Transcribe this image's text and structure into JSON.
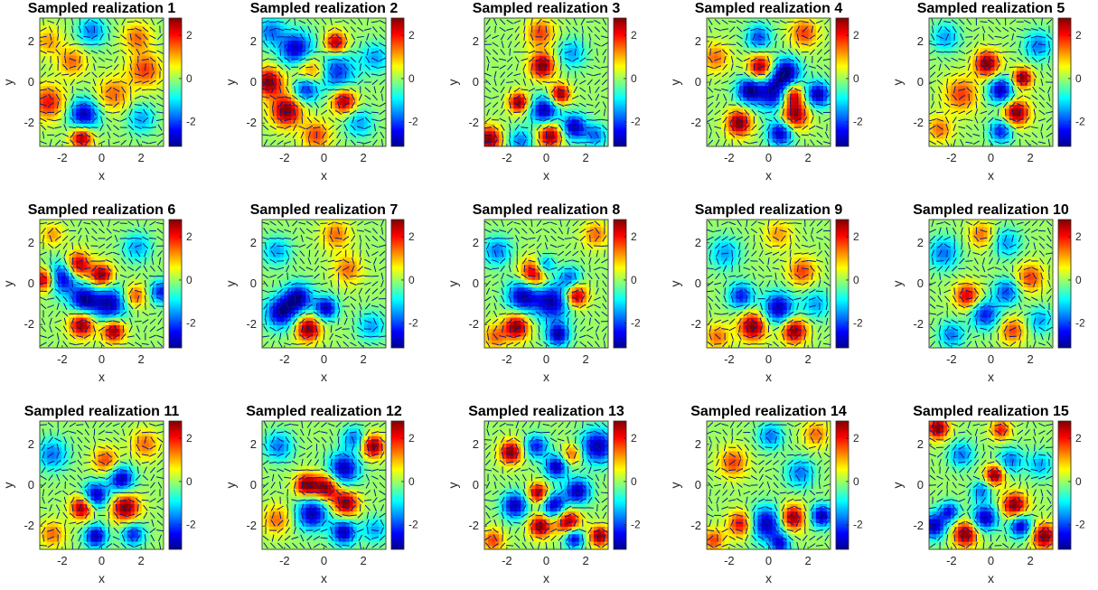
{
  "chart_data": {
    "type": "heatmap",
    "colormap": "jet",
    "overlay": "quiver",
    "grid": false,
    "xlabel": "x",
    "ylabel": "y",
    "xlim": [
      -3.14,
      3.14
    ],
    "ylim": [
      -3.14,
      3.14
    ],
    "xticks": [
      -2,
      0,
      2
    ],
    "yticks": [
      -2,
      0,
      2
    ],
    "colorbar": {
      "clim": [
        -3.14,
        2.8
      ],
      "ticks": [
        2,
        0,
        -2
      ]
    },
    "panels": [
      {
        "title": "Sampled realization 1",
        "blobs": [
          [
            -0.9,
            -1.6,
            -1,
            0.55
          ],
          [
            -1.0,
            -2.7,
            1,
            0.4
          ],
          [
            2.2,
            0.6,
            0.6,
            0.6
          ],
          [
            -2.7,
            -1.0,
            0.7,
            0.6
          ],
          [
            -0.5,
            2.5,
            -0.6,
            0.5
          ],
          [
            2.0,
            -1.8,
            -0.5,
            0.5
          ],
          [
            1.8,
            2.2,
            0.5,
            0.5
          ],
          [
            -1.5,
            1.0,
            0.5,
            0.5
          ],
          [
            0.6,
            -0.6,
            0.5,
            0.6
          ],
          [
            -2.7,
            2.0,
            0.4,
            0.5
          ]
        ]
      },
      {
        "title": "Sampled realization 2",
        "blobs": [
          [
            -1.4,
            1.6,
            -1,
            0.6
          ],
          [
            -0.5,
            0.5,
            1,
            0.65
          ],
          [
            0.4,
            0.5,
            -1,
            0.75
          ],
          [
            -0.9,
            -0.3,
            -1,
            0.45
          ],
          [
            -1.9,
            -1.4,
            1,
            0.55
          ],
          [
            -2.8,
            0.0,
            1,
            0.5
          ],
          [
            1.0,
            -0.9,
            1,
            0.45
          ],
          [
            0.6,
            1.9,
            1,
            0.4
          ],
          [
            -0.4,
            -2.6,
            0.6,
            0.5
          ],
          [
            2.6,
            1.2,
            -0.5,
            0.5
          ],
          [
            -2.7,
            2.5,
            -0.6,
            0.5
          ],
          [
            1.8,
            -2.0,
            -0.5,
            0.5
          ]
        ]
      },
      {
        "title": "Sampled realization 3",
        "blobs": [
          [
            -0.1,
            -1.4,
            -1,
            0.5
          ],
          [
            1.4,
            -2.2,
            -1,
            0.45
          ],
          [
            0.2,
            -2.6,
            1,
            0.45
          ],
          [
            -0.2,
            0.8,
            1,
            0.45
          ],
          [
            -1.4,
            -1.0,
            1,
            0.35
          ],
          [
            0.7,
            -0.6,
            1,
            0.35
          ],
          [
            -2.9,
            -2.8,
            1,
            0.45
          ],
          [
            -1.3,
            -2.9,
            -0.6,
            0.45
          ],
          [
            2.5,
            -2.6,
            -0.6,
            0.4
          ],
          [
            -0.3,
            2.4,
            0.6,
            0.5
          ],
          [
            1.3,
            1.4,
            -0.5,
            0.5
          ]
        ]
      },
      {
        "title": "Sampled realization 4",
        "blobs": [
          [
            0.3,
            -0.5,
            -1,
            0.65
          ],
          [
            1.3,
            -1.6,
            1,
            0.5
          ],
          [
            -0.4,
            0.7,
            1,
            0.45
          ],
          [
            0.9,
            0.5,
            -1,
            0.5
          ],
          [
            -1.0,
            -0.4,
            -1,
            0.45
          ],
          [
            1.2,
            -0.6,
            1,
            0.4
          ],
          [
            0.6,
            -2.5,
            -1,
            0.45
          ],
          [
            2.5,
            -0.6,
            -1,
            0.45
          ],
          [
            -1.5,
            -2.0,
            1,
            0.45
          ],
          [
            -0.5,
            2.2,
            -0.7,
            0.45
          ],
          [
            1.8,
            2.4,
            0.6,
            0.5
          ],
          [
            -2.7,
            1.2,
            0.5,
            0.5
          ]
        ]
      },
      {
        "title": "Sampled realization 5",
        "blobs": [
          [
            0.5,
            -0.4,
            -1,
            0.45
          ],
          [
            1.3,
            -1.5,
            1,
            0.45
          ],
          [
            -0.2,
            0.9,
            1,
            0.45
          ],
          [
            1.6,
            0.2,
            1,
            0.35
          ],
          [
            0.5,
            -2.4,
            -0.8,
            0.4
          ],
          [
            -1.5,
            -0.6,
            0.6,
            0.6
          ],
          [
            2.4,
            1.8,
            -0.6,
            0.5
          ],
          [
            -2.3,
            2.2,
            -0.5,
            0.5
          ],
          [
            -2.6,
            -2.3,
            0.5,
            0.45
          ]
        ]
      },
      {
        "title": "Sampled realization 6",
        "blobs": [
          [
            -2.0,
            0.3,
            -1,
            0.55
          ],
          [
            -0.9,
            -0.8,
            -1,
            0.5
          ],
          [
            0.4,
            -1.0,
            -1,
            0.6
          ],
          [
            -1.2,
            0.9,
            1,
            0.45
          ],
          [
            0.0,
            0.4,
            1,
            0.4
          ],
          [
            -1.0,
            -2.0,
            1,
            0.45
          ],
          [
            0.6,
            -2.3,
            1,
            0.4
          ],
          [
            -2.9,
            0.2,
            1,
            0.4
          ],
          [
            3.0,
            -0.4,
            -0.8,
            0.4
          ],
          [
            1.7,
            -0.6,
            0.6,
            0.4
          ],
          [
            1.8,
            1.8,
            -0.5,
            0.5
          ],
          [
            -2.5,
            2.4,
            0.4,
            0.4
          ]
        ]
      },
      {
        "title": "Sampled realization 7",
        "blobs": [
          [
            -2.2,
            -1.4,
            -1,
            0.55
          ],
          [
            -1.3,
            -0.7,
            -1,
            0.5
          ],
          [
            0.1,
            -1.2,
            -1,
            0.4
          ],
          [
            -0.8,
            -2.2,
            1,
            0.45
          ],
          [
            1.2,
            0.7,
            0.5,
            0.5
          ],
          [
            -2.4,
            1.6,
            -0.5,
            0.5
          ],
          [
            2.4,
            -2.1,
            -0.5,
            0.5
          ],
          [
            0.6,
            2.4,
            0.5,
            0.5
          ]
        ]
      },
      {
        "title": "Sampled realization 8",
        "blobs": [
          [
            -1.2,
            -0.6,
            -1,
            0.55
          ],
          [
            0.3,
            -0.9,
            -1,
            0.65
          ],
          [
            -0.6,
            0.5,
            1,
            0.5
          ],
          [
            -1.5,
            -2.1,
            1,
            0.45
          ],
          [
            1.5,
            -0.6,
            1,
            0.4
          ],
          [
            0.6,
            -2.5,
            -1,
            0.4
          ],
          [
            -0.1,
            0.9,
            -0.8,
            0.35
          ],
          [
            1.2,
            0.3,
            -0.6,
            0.4
          ],
          [
            -2.5,
            1.6,
            -0.6,
            0.5
          ],
          [
            2.5,
            2.4,
            0.5,
            0.45
          ],
          [
            -2.6,
            -2.6,
            0.5,
            0.45
          ]
        ]
      },
      {
        "title": "Sampled realization 9",
        "blobs": [
          [
            0.5,
            -1.2,
            -1,
            0.55
          ],
          [
            -0.8,
            -2.1,
            1,
            0.5
          ],
          [
            1.3,
            -2.3,
            1,
            0.45
          ],
          [
            -1.4,
            -0.6,
            -0.8,
            0.45
          ],
          [
            1.7,
            0.6,
            0.6,
            0.5
          ],
          [
            -2.2,
            1.5,
            -0.5,
            0.55
          ],
          [
            2.4,
            -1.0,
            -0.5,
            0.5
          ],
          [
            0.5,
            2.4,
            0.4,
            0.5
          ],
          [
            -2.6,
            -2.6,
            0.5,
            0.45
          ]
        ]
      },
      {
        "title": "Sampled realization 10",
        "blobs": [
          [
            -0.3,
            -1.5,
            -0.8,
            0.5
          ],
          [
            0.8,
            -0.4,
            -0.7,
            0.45
          ],
          [
            -1.2,
            -0.6,
            0.8,
            0.45
          ],
          [
            2.0,
            0.3,
            0.6,
            0.5
          ],
          [
            -2.4,
            1.5,
            -0.6,
            0.55
          ],
          [
            1.1,
            -2.3,
            0.6,
            0.45
          ],
          [
            -2.0,
            -2.5,
            -0.6,
            0.45
          ],
          [
            0.8,
            2.0,
            -0.5,
            0.5
          ],
          [
            -0.5,
            2.4,
            0.5,
            0.45
          ],
          [
            2.5,
            -1.8,
            -0.5,
            0.45
          ]
        ]
      },
      {
        "title": "Sampled realization 11",
        "blobs": [
          [
            -0.3,
            -0.5,
            -1,
            0.45
          ],
          [
            1.2,
            -1.1,
            1,
            0.5
          ],
          [
            -1.0,
            -1.1,
            1,
            0.4
          ],
          [
            1.0,
            0.3,
            -1,
            0.45
          ],
          [
            -0.3,
            -2.5,
            -1,
            0.4
          ],
          [
            1.6,
            -2.4,
            -0.8,
            0.4
          ],
          [
            0.2,
            1.2,
            0.6,
            0.45
          ],
          [
            -2.5,
            1.5,
            -0.6,
            0.55
          ],
          [
            2.2,
            2.0,
            0.5,
            0.5
          ],
          [
            -2.5,
            -2.4,
            0.5,
            0.45
          ]
        ]
      },
      {
        "title": "Sampled realization 12",
        "blobs": [
          [
            1.0,
            0.8,
            -1,
            0.55
          ],
          [
            -0.6,
            -1.4,
            -1,
            0.55
          ],
          [
            1.0,
            -2.3,
            -1,
            0.45
          ],
          [
            0.1,
            -0.1,
            1,
            0.45
          ],
          [
            -0.9,
            0.0,
            1,
            0.4
          ],
          [
            1.1,
            -0.9,
            1,
            0.45
          ],
          [
            2.5,
            1.9,
            1,
            0.4
          ],
          [
            1.5,
            2.3,
            -0.6,
            0.4
          ],
          [
            -2.3,
            1.9,
            -0.6,
            0.5
          ],
          [
            -2.4,
            -1.7,
            0.5,
            0.5
          ],
          [
            2.6,
            -2.2,
            -0.5,
            0.45
          ]
        ]
      },
      {
        "title": "Sampled realization 13",
        "blobs": [
          [
            2.6,
            1.9,
            -1,
            0.6
          ],
          [
            -1.6,
            -1.0,
            -1,
            0.45
          ],
          [
            0.4,
            -1.0,
            -1,
            0.45
          ],
          [
            1.6,
            -0.3,
            -1,
            0.45
          ],
          [
            1.1,
            -1.8,
            1,
            0.45
          ],
          [
            -0.3,
            -2.0,
            1,
            0.4
          ],
          [
            1.4,
            -2.6,
            -1,
            0.35
          ],
          [
            0.5,
            0.9,
            -1,
            0.4
          ],
          [
            -0.4,
            -0.4,
            1,
            0.35
          ],
          [
            -1.8,
            1.6,
            1,
            0.4
          ],
          [
            -0.5,
            1.9,
            -0.8,
            0.4
          ],
          [
            2.7,
            -2.5,
            1,
            0.35
          ],
          [
            -2.7,
            -2.7,
            0.6,
            0.4
          ],
          [
            1.3,
            1.5,
            0.6,
            0.35
          ]
        ]
      },
      {
        "title": "Sampled realization 14",
        "blobs": [
          [
            -0.1,
            -1.9,
            -1,
            0.6
          ],
          [
            1.2,
            -1.6,
            1,
            0.45
          ],
          [
            2.7,
            -1.5,
            -1,
            0.4
          ],
          [
            -1.4,
            -1.9,
            0.8,
            0.45
          ],
          [
            0.6,
            -2.9,
            -0.8,
            0.35
          ],
          [
            1.6,
            0.6,
            -0.6,
            0.5
          ],
          [
            -1.8,
            1.1,
            0.6,
            0.5
          ],
          [
            0.1,
            2.4,
            -0.6,
            0.45
          ],
          [
            -2.8,
            -2.7,
            0.6,
            0.4
          ],
          [
            2.4,
            2.5,
            0.5,
            0.45
          ]
        ]
      },
      {
        "title": "Sampled realization 15",
        "blobs": [
          [
            1.2,
            -1.0,
            1,
            0.45
          ],
          [
            -1.3,
            -2.4,
            1,
            0.45
          ],
          [
            -0.3,
            -1.6,
            -1,
            0.45
          ],
          [
            2.7,
            -2.5,
            1,
            0.45
          ],
          [
            -2.9,
            -2.0,
            -1,
            0.45
          ],
          [
            -2.1,
            -1.3,
            -0.8,
            0.35
          ],
          [
            1.5,
            -2.0,
            -1,
            0.4
          ],
          [
            0.2,
            0.5,
            1,
            0.35
          ],
          [
            -1.5,
            1.5,
            -0.6,
            0.45
          ],
          [
            1.0,
            1.2,
            -0.6,
            0.45
          ],
          [
            -2.7,
            2.8,
            1,
            0.4
          ],
          [
            0.5,
            2.7,
            0.7,
            0.35
          ],
          [
            2.5,
            1.0,
            -0.5,
            0.45
          ],
          [
            -0.5,
            -0.3,
            -0.6,
            0.35
          ]
        ]
      }
    ]
  }
}
